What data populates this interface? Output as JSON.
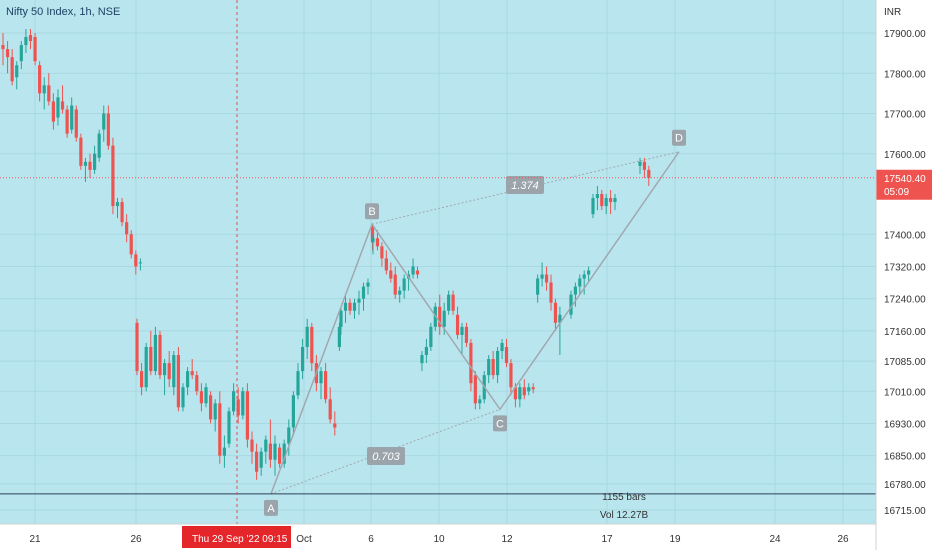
{
  "header": {
    "title": "Nifty 50 Index, 1h, NSE",
    "currency": "INR"
  },
  "colors": {
    "background": "#b9e6ee",
    "up": "#26a69a",
    "down": "#ef5350",
    "pattern": "#a0a8ae",
    "label_box": "#9aa4aa",
    "label_text": "#ffffff",
    "price_line": "#ef5350",
    "support_line": "#2e3f5c",
    "crosshair": "#e05050",
    "date_badge": "#e4262b"
  },
  "chart_data": {
    "type": "candlestick",
    "title": "Nifty 50 Index, 1h, NSE",
    "ylabel": "INR",
    "ylim": [
      16680,
      18000
    ],
    "y_ticks": [
      17900,
      17800,
      17700,
      17600,
      17400,
      17320,
      17240,
      17160,
      17085,
      17010,
      16930,
      16850,
      16780,
      16715
    ],
    "y_tick_labels": [
      "17900.00",
      "17800.00",
      "17700.00",
      "17600.00",
      "17400.00",
      "17320.00",
      "17240.00",
      "17160.00",
      "17085.00",
      "17010.00",
      "16930.00",
      "16850.00",
      "16780.00",
      "16715.00"
    ],
    "x_ticks": [
      "21",
      "26",
      "Oct",
      "6",
      "10",
      "12",
      "17",
      "19",
      "24",
      "26"
    ],
    "grid": true,
    "last_price": 17540.4,
    "last_price_label": "17540.40",
    "countdown": "05:09",
    "crosshair_date": "Thu 29 Sep '22",
    "crosshair_time": "09:15",
    "support_level": 16755,
    "bars_info": "1155 bars",
    "volume": "Vol 12.27B",
    "pattern": {
      "points": [
        {
          "label": "A",
          "value": 16755
        },
        {
          "label": "B",
          "value": 17425
        },
        {
          "label": "C",
          "value": 16965
        },
        {
          "label": "D",
          "value": 17605
        }
      ],
      "ratios": [
        "1.374",
        "0.703"
      ]
    },
    "candles": [
      [
        17870,
        17900,
        17820,
        17860
      ],
      [
        17860,
        17880,
        17800,
        17840
      ],
      [
        17840,
        17860,
        17770,
        17780
      ],
      [
        17790,
        17830,
        17760,
        17820
      ],
      [
        17830,
        17880,
        17810,
        17870
      ],
      [
        17870,
        17910,
        17850,
        17890
      ],
      [
        17895,
        17910,
        17860,
        17880
      ],
      [
        17890,
        17900,
        17820,
        17830
      ],
      [
        17820,
        17830,
        17730,
        17750
      ],
      [
        17750,
        17790,
        17710,
        17770
      ],
      [
        17770,
        17800,
        17720,
        17730
      ],
      [
        17730,
        17750,
        17660,
        17680
      ],
      [
        17690,
        17760,
        17670,
        17740
      ],
      [
        17730,
        17770,
        17700,
        17710
      ],
      [
        17710,
        17720,
        17640,
        17650
      ],
      [
        17660,
        17740,
        17650,
        17720
      ],
      [
        17710,
        17720,
        17630,
        17640
      ],
      [
        17640,
        17650,
        17560,
        17570
      ],
      [
        17570,
        17590,
        17530,
        17580
      ],
      [
        17580,
        17600,
        17540,
        17560
      ],
      [
        17560,
        17620,
        17550,
        17600
      ],
      [
        17590,
        17660,
        17580,
        17650
      ],
      [
        17660,
        17720,
        17630,
        17700
      ],
      [
        17700,
        17720,
        17610,
        17620
      ],
      [
        17620,
        17640,
        17450,
        17470
      ],
      [
        17470,
        17490,
        17440,
        17480
      ],
      [
        17480,
        17490,
        17420,
        17430
      ],
      [
        17430,
        17450,
        17380,
        17400
      ],
      [
        17400,
        17410,
        17340,
        17350
      ],
      [
        17350,
        17360,
        17300,
        17320
      ],
      [
        17330,
        17340,
        17310,
        17330
      ],
      [
        17180,
        17190,
        17050,
        17060
      ],
      [
        17060,
        17080,
        17000,
        17020
      ],
      [
        17020,
        17130,
        17010,
        17120
      ],
      [
        17120,
        17160,
        17050,
        17060
      ],
      [
        17060,
        17170,
        17050,
        17150
      ],
      [
        17150,
        17160,
        17040,
        17050
      ],
      [
        17050,
        17090,
        17000,
        17080
      ],
      [
        17080,
        17110,
        17020,
        17040
      ],
      [
        17020,
        17110,
        17000,
        17100
      ],
      [
        17100,
        17120,
        16960,
        16970
      ],
      [
        16970,
        17030,
        16960,
        17020
      ],
      [
        17020,
        17070,
        17000,
        17060
      ],
      [
        17060,
        17090,
        17040,
        17050
      ],
      [
        17050,
        17060,
        17000,
        17010
      ],
      [
        17010,
        17030,
        16960,
        16980
      ],
      [
        16980,
        17030,
        16970,
        17020
      ],
      [
        17000,
        17010,
        16930,
        16940
      ],
      [
        16940,
        16990,
        16910,
        16980
      ],
      [
        16980,
        17010,
        16830,
        16850
      ],
      [
        16850,
        16900,
        16820,
        16870
      ],
      [
        16880,
        16970,
        16870,
        16960
      ],
      [
        16960,
        17030,
        16950,
        17010
      ],
      [
        16990,
        17020,
        16930,
        16950
      ],
      [
        16950,
        17020,
        16940,
        17010
      ],
      [
        17010,
        17030,
        16870,
        16890
      ],
      [
        16890,
        16910,
        16830,
        16860
      ],
      [
        16860,
        16880,
        16790,
        16810
      ],
      [
        16820,
        16870,
        16800,
        16860
      ],
      [
        16860,
        16900,
        16830,
        16890
      ],
      [
        16880,
        16940,
        16820,
        16840
      ],
      [
        16840,
        16900,
        16800,
        16880
      ],
      [
        16870,
        16880,
        16820,
        16830
      ],
      [
        16830,
        16890,
        16820,
        16880
      ],
      [
        16880,
        16940,
        16850,
        16920
      ],
      [
        16920,
        17010,
        16900,
        17000
      ],
      [
        17000,
        17080,
        16990,
        17060
      ],
      [
        17060,
        17140,
        17040,
        17120
      ],
      [
        17120,
        17190,
        17090,
        17170
      ],
      [
        17170,
        17180,
        17060,
        17080
      ],
      [
        17080,
        17100,
        17010,
        17030
      ],
      [
        17030,
        17070,
        16990,
        17060
      ],
      [
        17060,
        17080,
        16980,
        16990
      ],
      [
        16990,
        17020,
        16930,
        16940
      ],
      [
        16930,
        16960,
        16900,
        16920
      ],
      [
        17120,
        17180,
        17110,
        17170
      ],
      [
        17170,
        17220,
        17150,
        17210
      ],
      [
        17210,
        17250,
        17180,
        17230
      ],
      [
        17230,
        17240,
        17200,
        17210
      ],
      [
        17210,
        17240,
        17190,
        17230
      ],
      [
        17230,
        17260,
        17200,
        17240
      ],
      [
        17240,
        17280,
        17210,
        17270
      ],
      [
        17270,
        17290,
        17250,
        17280
      ],
      [
        17420,
        17425,
        17360,
        17380
      ],
      [
        17380,
        17400,
        17350,
        17390
      ],
      [
        17390,
        17410,
        17360,
        17370
      ],
      [
        17370,
        17380,
        17320,
        17340
      ],
      [
        17340,
        17360,
        17300,
        17310
      ],
      [
        17310,
        17330,
        17280,
        17290
      ],
      [
        17300,
        17320,
        17240,
        17250
      ],
      [
        17250,
        17270,
        17230,
        17260
      ],
      [
        17260,
        17300,
        17240,
        17290
      ],
      [
        17290,
        17310,
        17260,
        17300
      ],
      [
        17300,
        17340,
        17290,
        17320
      ],
      [
        17310,
        17320,
        17290,
        17300
      ],
      [
        17080,
        17110,
        17060,
        17100
      ],
      [
        17100,
        17140,
        17080,
        17120
      ],
      [
        17120,
        17180,
        17110,
        17170
      ],
      [
        17170,
        17230,
        17160,
        17220
      ],
      [
        17220,
        17250,
        17150,
        17170
      ],
      [
        17170,
        17230,
        17150,
        17210
      ],
      [
        17210,
        17260,
        17200,
        17250
      ],
      [
        17250,
        17260,
        17200,
        17210
      ],
      [
        17200,
        17220,
        17140,
        17150
      ],
      [
        17150,
        17180,
        17100,
        17170
      ],
      [
        17170,
        17180,
        17120,
        17130
      ],
      [
        17130,
        17140,
        17010,
        17030
      ],
      [
        17050,
        17060,
        16965,
        16980
      ],
      [
        16980,
        17000,
        16965,
        16990
      ],
      [
        16990,
        17060,
        16980,
        17050
      ],
      [
        17050,
        17100,
        17030,
        17090
      ],
      [
        17090,
        17110,
        17040,
        17050
      ],
      [
        17050,
        17120,
        17030,
        17110
      ],
      [
        17110,
        17140,
        17090,
        17130
      ],
      [
        17120,
        17140,
        17070,
        17080
      ],
      [
        17080,
        17090,
        17000,
        17020
      ],
      [
        17020,
        17030,
        16970,
        16990
      ],
      [
        16990,
        17030,
        16970,
        17020
      ],
      [
        17020,
        17040,
        16990,
        17000
      ],
      [
        17010,
        17030,
        17000,
        17020
      ],
      [
        17020,
        17030,
        17005,
        17015
      ],
      [
        17250,
        17300,
        17230,
        17290
      ],
      [
        17290,
        17330,
        17270,
        17300
      ],
      [
        17300,
        17320,
        17260,
        17280
      ],
      [
        17280,
        17300,
        17210,
        17230
      ],
      [
        17230,
        17240,
        17160,
        17180
      ],
      [
        17180,
        17220,
        17100,
        17200
      ],
      [
        17200,
        17260,
        17190,
        17250
      ],
      [
        17250,
        17280,
        17220,
        17270
      ],
      [
        17270,
        17300,
        17250,
        17290
      ],
      [
        17290,
        17310,
        17250,
        17300
      ],
      [
        17300,
        17320,
        17280,
        17310
      ],
      [
        17450,
        17500,
        17440,
        17490
      ],
      [
        17490,
        17520,
        17460,
        17500
      ],
      [
        17500,
        17510,
        17460,
        17470
      ],
      [
        17470,
        17500,
        17450,
        17490
      ],
      [
        17490,
        17510,
        17450,
        17480
      ],
      [
        17480,
        17500,
        17460,
        17490
      ],
      [
        17570,
        17590,
        17550,
        17580
      ],
      [
        17580,
        17590,
        17540,
        17560
      ],
      [
        17560,
        17570,
        17520,
        17540
      ]
    ]
  }
}
